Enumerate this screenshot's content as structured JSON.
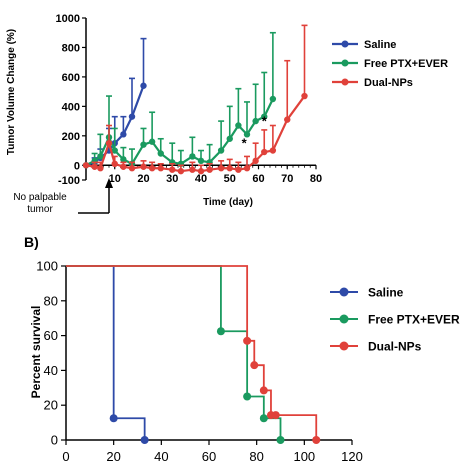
{
  "panel_b_label": "B)",
  "chart_data": [
    {
      "type": "line",
      "xlabel": "Time (day)",
      "ylabel": "Tumor Volume Change (%)",
      "xlim": [
        0,
        80
      ],
      "ylim": [
        -100,
        1000
      ],
      "xticks": [
        "10",
        "20",
        "30",
        "40",
        "50",
        "60",
        "70",
        "80"
      ],
      "yticks": [
        "-100",
        "0",
        "200",
        "400",
        "600",
        "800",
        "1000"
      ],
      "annotation": "No palpable tumor",
      "annotation_x": 8,
      "significance": [
        {
          "label": "*",
          "x": 55,
          "y": 120
        },
        {
          "label": "*",
          "x": 62,
          "y": 270
        }
      ],
      "legend_position": "right",
      "series": [
        {
          "name": "Saline",
          "color": "#2e4aa8",
          "x": [
            0,
            3,
            5,
            8,
            10,
            13,
            16,
            20
          ],
          "y": [
            0,
            20,
            50,
            100,
            150,
            210,
            330,
            540
          ],
          "err": [
            0,
            30,
            60,
            150,
            180,
            120,
            260,
            320
          ]
        },
        {
          "name": "Free PTX+EVER",
          "color": "#1a9a5f",
          "x": [
            0,
            3,
            5,
            8,
            10,
            13,
            16,
            20,
            23,
            26,
            30,
            33,
            37,
            40,
            43,
            47,
            50,
            53,
            56,
            59,
            62,
            65
          ],
          "y": [
            0,
            30,
            60,
            190,
            100,
            40,
            10,
            140,
            160,
            80,
            20,
            10,
            60,
            30,
            20,
            100,
            180,
            270,
            210,
            300,
            330,
            450
          ],
          "err": [
            0,
            50,
            150,
            280,
            150,
            80,
            100,
            110,
            200,
            100,
            130,
            90,
            130,
            70,
            120,
            200,
            220,
            250,
            220,
            250,
            300,
            450
          ]
        },
        {
          "name": "Dual-NPs",
          "color": "#e0413a",
          "x": [
            0,
            3,
            5,
            8,
            10,
            13,
            16,
            20,
            23,
            26,
            30,
            33,
            37,
            40,
            43,
            47,
            50,
            53,
            56,
            59,
            62,
            65,
            70,
            76
          ],
          "y": [
            0,
            -10,
            -20,
            150,
            10,
            -10,
            -20,
            -10,
            -20,
            -20,
            -30,
            -40,
            -30,
            -40,
            -30,
            -20,
            -20,
            -30,
            -20,
            30,
            90,
            100,
            310,
            470
          ],
          "err": [
            0,
            30,
            40,
            120,
            50,
            30,
            40,
            40,
            40,
            30,
            40,
            40,
            50,
            40,
            40,
            50,
            60,
            50,
            80,
            120,
            150,
            170,
            400,
            480
          ]
        }
      ]
    },
    {
      "type": "line",
      "subtype": "step",
      "xlabel": "",
      "ylabel": "Percent survival",
      "xlim": [
        0,
        120
      ],
      "ylim": [
        0,
        100
      ],
      "xticks": [
        "0",
        "20",
        "40",
        "60",
        "80",
        "100",
        "120"
      ],
      "yticks": [
        "0",
        "20",
        "40",
        "60",
        "80",
        "100"
      ],
      "legend_position": "right",
      "series": [
        {
          "name": "Saline",
          "color": "#2e4aa8",
          "x": [
            0,
            20,
            33
          ],
          "y": [
            100,
            12.5,
            0
          ]
        },
        {
          "name": "Free PTX+EVER",
          "color": "#1a9a5f",
          "x": [
            0,
            65,
            76,
            83,
            90
          ],
          "y": [
            100,
            62.5,
            25,
            12.5,
            0
          ]
        },
        {
          "name": "Dual-NPs",
          "color": "#e0413a",
          "x": [
            0,
            76,
            79,
            83,
            86,
            88,
            105
          ],
          "y": [
            100,
            57,
            43,
            28.5,
            14.3,
            14.3,
            0
          ]
        }
      ]
    }
  ]
}
